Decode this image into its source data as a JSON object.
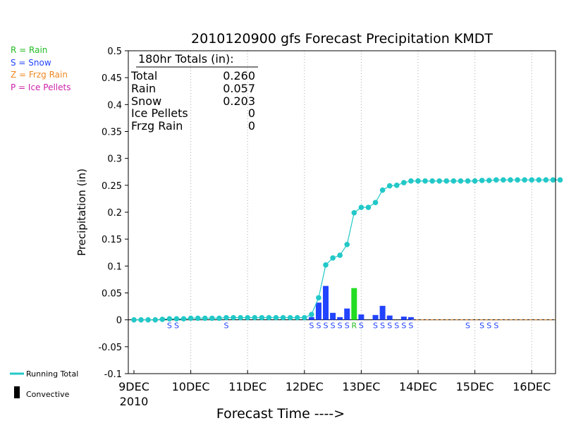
{
  "page": {
    "title": "2010120900 gfs Forecast Precipitation KMDT",
    "ylabel": "Precipitation (in)",
    "xlabel": "Forecast Time ---->"
  },
  "type_legend": [
    {
      "code": "R",
      "label": "R = Rain",
      "color": "#22bb22"
    },
    {
      "code": "S",
      "label": "S = Snow",
      "color": "#2244ff"
    },
    {
      "code": "Z",
      "label": "Z = Frzg Rain",
      "color": "#ee8822"
    },
    {
      "code": "P",
      "label": "P = Ice Pellets",
      "color": "#cc22aa"
    }
  ],
  "bottom_legend": {
    "running_total": "Running Total",
    "convective": "Convective"
  },
  "totals_box": {
    "header": "180hr Totals (in):",
    "rows": [
      {
        "label": "Total",
        "value": "0.260"
      },
      {
        "label": "Rain",
        "value": "0.057"
      },
      {
        "label": "Snow",
        "value": "0.203"
      },
      {
        "label": "Ice Pellets",
        "value": "0"
      },
      {
        "label": "Frzg Rain",
        "value": "0"
      }
    ]
  },
  "chart_data": {
    "type": "bar",
    "title": "2010120900 gfs Forecast Precipitation KMDT",
    "xlabel": "Forecast Time ---->",
    "ylabel": "Precipitation (in)",
    "ylim": [
      -0.1,
      0.5
    ],
    "yticks": [
      "-0.1",
      "-0.05",
      "0",
      "0.05",
      "0.1",
      "0.15",
      "0.2",
      "0.25",
      "0.3",
      "0.35",
      "0.4",
      "0.45",
      "0.5"
    ],
    "x_unit": "forecast hour",
    "xlim": [
      0,
      180
    ],
    "xticks": [
      {
        "hour": 0,
        "label": "9DEC",
        "sublabel": "2010"
      },
      {
        "hour": 24,
        "label": "10DEC"
      },
      {
        "hour": 48,
        "label": "11DEC"
      },
      {
        "hour": 72,
        "label": "12DEC"
      },
      {
        "hour": 96,
        "label": "13DEC"
      },
      {
        "hour": 120,
        "label": "14DEC"
      },
      {
        "hour": 144,
        "label": "15DEC"
      },
      {
        "hour": 168,
        "label": "16DEC"
      }
    ],
    "grid": true,
    "bars": [
      {
        "hour": 75,
        "value": 0.005,
        "type": "S"
      },
      {
        "hour": 78,
        "value": 0.032,
        "type": "S"
      },
      {
        "hour": 81,
        "value": 0.063,
        "type": "S"
      },
      {
        "hour": 84,
        "value": 0.013,
        "type": "S"
      },
      {
        "hour": 87,
        "value": 0.005,
        "type": "S"
      },
      {
        "hour": 90,
        "value": 0.021,
        "type": "S"
      },
      {
        "hour": 93,
        "value": 0.059,
        "type": "R"
      },
      {
        "hour": 96,
        "value": 0.01,
        "type": "S"
      },
      {
        "hour": 102,
        "value": 0.009,
        "type": "S"
      },
      {
        "hour": 105,
        "value": 0.026,
        "type": "S"
      },
      {
        "hour": 108,
        "value": 0.008,
        "type": "S"
      },
      {
        "hour": 114,
        "value": 0.006,
        "type": "S"
      },
      {
        "hour": 117,
        "value": 0.005,
        "type": "S"
      }
    ],
    "type_labels": [
      {
        "hour": 15,
        "text": "S",
        "color": "#2244ff"
      },
      {
        "hour": 18,
        "text": "S",
        "color": "#2244ff"
      },
      {
        "hour": 39,
        "text": "S",
        "color": "#2244ff"
      },
      {
        "hour": 75,
        "text": "S",
        "color": "#2244ff"
      },
      {
        "hour": 78,
        "text": "S",
        "color": "#2244ff"
      },
      {
        "hour": 81,
        "text": "S",
        "color": "#2244ff"
      },
      {
        "hour": 84,
        "text": "S",
        "color": "#2244ff"
      },
      {
        "hour": 87,
        "text": "S",
        "color": "#2244ff"
      },
      {
        "hour": 90,
        "text": "S",
        "color": "#2244ff"
      },
      {
        "hour": 93,
        "text": "R",
        "color": "#22bb22"
      },
      {
        "hour": 96,
        "text": "S",
        "color": "#2244ff"
      },
      {
        "hour": 102,
        "text": "S",
        "color": "#2244ff"
      },
      {
        "hour": 105,
        "text": "S",
        "color": "#2244ff"
      },
      {
        "hour": 108,
        "text": "S",
        "color": "#2244ff"
      },
      {
        "hour": 111,
        "text": "S",
        "color": "#2244ff"
      },
      {
        "hour": 114,
        "text": "S",
        "color": "#2244ff"
      },
      {
        "hour": 117,
        "text": "S",
        "color": "#2244ff"
      },
      {
        "hour": 141,
        "text": "S",
        "color": "#2244ff"
      },
      {
        "hour": 147,
        "text": "S",
        "color": "#2244ff"
      },
      {
        "hour": 150,
        "text": "S",
        "color": "#2244ff"
      },
      {
        "hour": 153,
        "text": "S",
        "color": "#2244ff"
      }
    ],
    "running_total": {
      "name": "Running Total",
      "color": "#22c8c8",
      "hours": [
        0,
        3,
        6,
        9,
        12,
        15,
        18,
        21,
        24,
        27,
        30,
        33,
        36,
        39,
        42,
        45,
        48,
        51,
        54,
        57,
        60,
        63,
        66,
        69,
        72,
        75,
        78,
        81,
        84,
        87,
        90,
        93,
        96,
        99,
        102,
        105,
        108,
        111,
        114,
        117,
        120,
        123,
        126,
        129,
        132,
        135,
        138,
        141,
        144,
        147,
        150,
        153,
        156,
        159,
        162,
        165,
        168,
        171,
        174,
        177,
        180
      ],
      "values": [
        0,
        0,
        0,
        0,
        0.001,
        0.002,
        0.002,
        0.002,
        0.003,
        0.003,
        0.003,
        0.003,
        0.003,
        0.004,
        0.004,
        0.004,
        0.004,
        0.004,
        0.004,
        0.004,
        0.004,
        0.004,
        0.004,
        0.004,
        0.004,
        0.01,
        0.041,
        0.102,
        0.115,
        0.12,
        0.14,
        0.199,
        0.209,
        0.209,
        0.218,
        0.241,
        0.249,
        0.25,
        0.255,
        0.258,
        0.258,
        0.258,
        0.258,
        0.258,
        0.258,
        0.258,
        0.258,
        0.258,
        0.258,
        0.259,
        0.259,
        0.26,
        0.26,
        0.26,
        0.26,
        0.26,
        0.26,
        0.26,
        0.26,
        0.26,
        0.26
      ]
    },
    "colors": {
      "snow": "#2244ff",
      "rain": "#22dd22",
      "zero_line": "#ee8822",
      "grid": "#aaaaaa"
    }
  }
}
